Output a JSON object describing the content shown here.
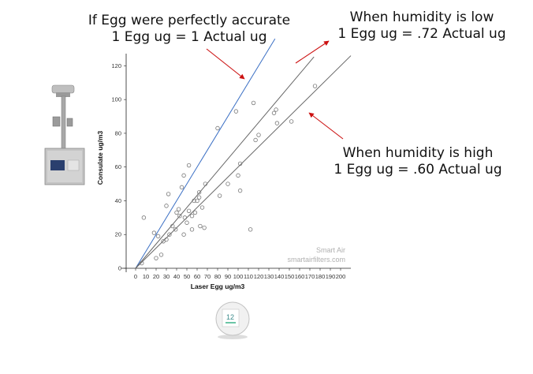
{
  "chart_data": {
    "type": "scatter",
    "xlabel": "Laser Egg ug/m3",
    "ylabel": "Consulate ug/m3",
    "xlim": [
      0,
      200
    ],
    "ylim": [
      0,
      130
    ],
    "x_ticks": [
      "0",
      "10",
      "20",
      "30",
      "40",
      "50",
      "60",
      "70",
      "80",
      "90",
      "100",
      "110",
      "120",
      "130",
      "140",
      "150",
      "160",
      "170",
      "180",
      "190",
      "200"
    ],
    "y_ticks": [
      "0",
      "20",
      "40",
      "60",
      "80",
      "100",
      "120"
    ],
    "grid": false,
    "points": [
      {
        "x": 6,
        "y": 3
      },
      {
        "x": 8,
        "y": 30
      },
      {
        "x": 18,
        "y": 21
      },
      {
        "x": 20,
        "y": 6
      },
      {
        "x": 22,
        "y": 19
      },
      {
        "x": 25,
        "y": 8
      },
      {
        "x": 27,
        "y": 16
      },
      {
        "x": 30,
        "y": 17
      },
      {
        "x": 30,
        "y": 37
      },
      {
        "x": 32,
        "y": 44
      },
      {
        "x": 33,
        "y": 20
      },
      {
        "x": 36,
        "y": 25
      },
      {
        "x": 39,
        "y": 23
      },
      {
        "x": 40,
        "y": 33
      },
      {
        "x": 42,
        "y": 35
      },
      {
        "x": 43,
        "y": 31
      },
      {
        "x": 45,
        "y": 48
      },
      {
        "x": 47,
        "y": 20
      },
      {
        "x": 47,
        "y": 55
      },
      {
        "x": 48,
        "y": 30
      },
      {
        "x": 50,
        "y": 27
      },
      {
        "x": 52,
        "y": 34
      },
      {
        "x": 52,
        "y": 61
      },
      {
        "x": 55,
        "y": 23
      },
      {
        "x": 55,
        "y": 31
      },
      {
        "x": 57,
        "y": 40
      },
      {
        "x": 58,
        "y": 33
      },
      {
        "x": 60,
        "y": 40
      },
      {
        "x": 62,
        "y": 42
      },
      {
        "x": 62,
        "y": 45
      },
      {
        "x": 63,
        "y": 25
      },
      {
        "x": 65,
        "y": 36
      },
      {
        "x": 67,
        "y": 24
      },
      {
        "x": 68,
        "y": 50
      },
      {
        "x": 80,
        "y": 83
      },
      {
        "x": 82,
        "y": 43
      },
      {
        "x": 90,
        "y": 50
      },
      {
        "x": 98,
        "y": 93
      },
      {
        "x": 100,
        "y": 55
      },
      {
        "x": 102,
        "y": 62
      },
      {
        "x": 102,
        "y": 46
      },
      {
        "x": 112,
        "y": 23
      },
      {
        "x": 115,
        "y": 98
      },
      {
        "x": 117,
        "y": 76
      },
      {
        "x": 120,
        "y": 79
      },
      {
        "x": 135,
        "y": 92
      },
      {
        "x": 137,
        "y": 94
      },
      {
        "x": 138,
        "y": 86
      },
      {
        "x": 152,
        "y": 87
      },
      {
        "x": 175,
        "y": 108
      }
    ],
    "lines": [
      {
        "slope": 1.0,
        "x_end": 136,
        "color": "#3a6fc4"
      },
      {
        "slope": 0.72,
        "x_end": 174,
        "color": "#666666"
      },
      {
        "slope": 0.6,
        "x_end": 210,
        "color": "#666666"
      }
    ],
    "arrow_color": "#cc1111"
  },
  "annotations": {
    "perfect_line1": "If Egg were perfectly accurate",
    "perfect_line2": "1 Egg ug = 1 Actual ug",
    "low_line1": "When humidity is low",
    "low_line2": "1 Egg ug = .72 Actual ug",
    "high_line1": "When humidity is high",
    "high_line2": "1 Egg ug = .60 Actual ug"
  },
  "watermark": {
    "brand": "Smart Air",
    "url": "smartairfilters.com"
  },
  "device_display": "12"
}
